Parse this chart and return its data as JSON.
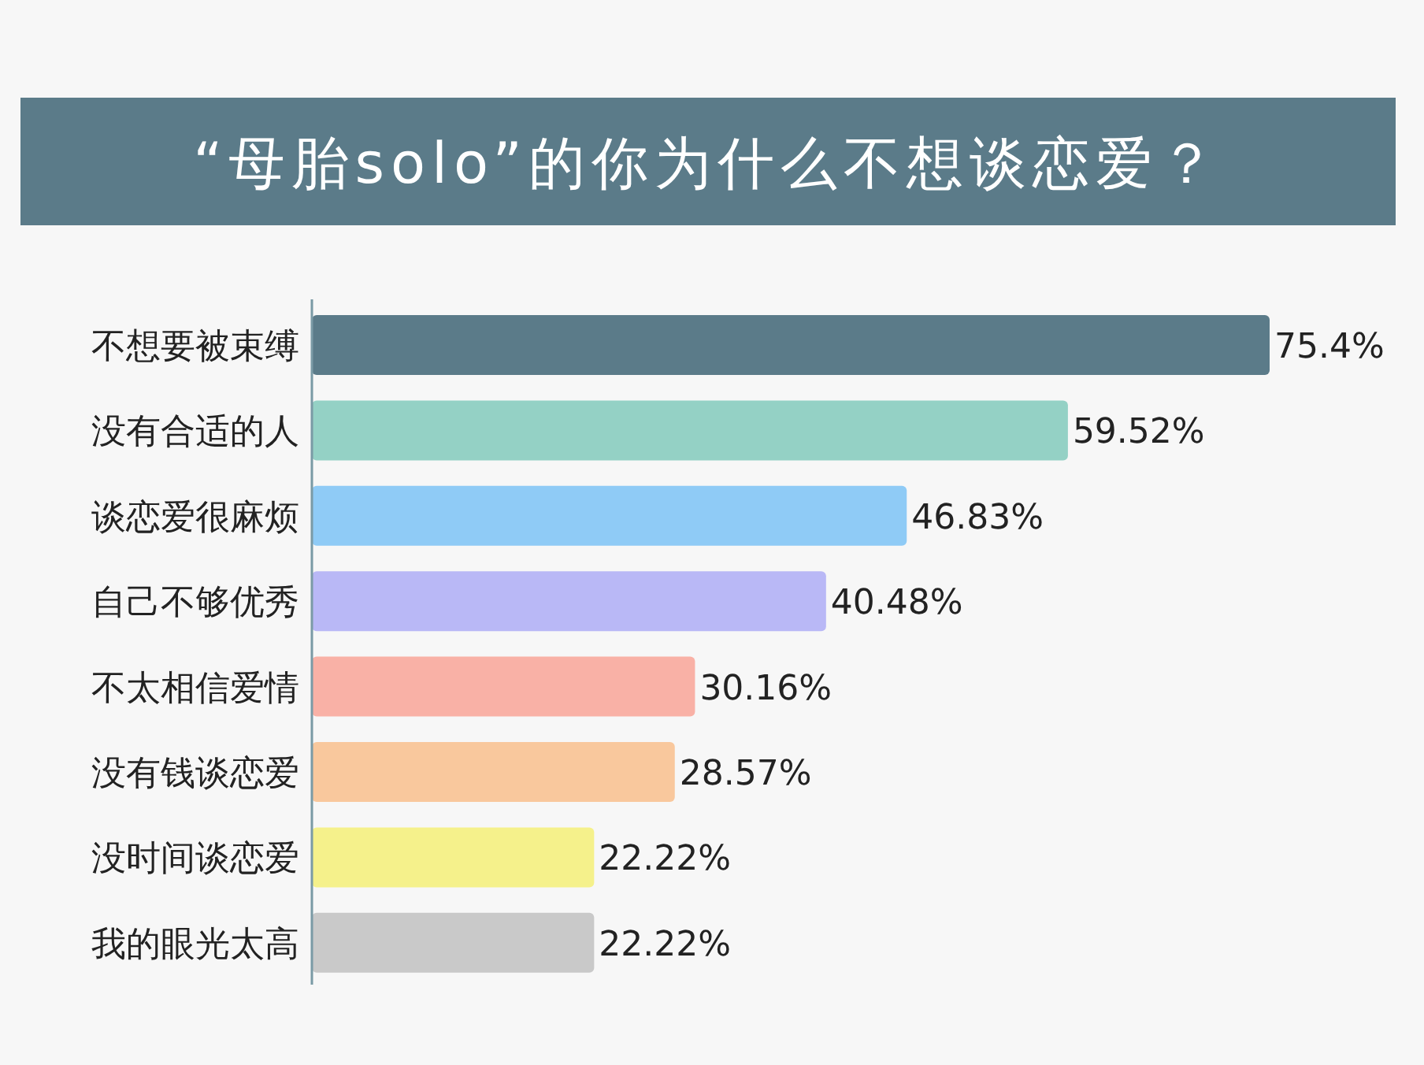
{
  "chart_data": {
    "type": "bar",
    "orientation": "horizontal",
    "title": "“母胎solo”的你为什么不想谈恋爱？",
    "categories": [
      "不想要被束缚",
      "没有合适的人",
      "谈恋爱很麻烦",
      "自己不够优秀",
      "不太相信爱情",
      "没有钱谈恋爱",
      "没时间谈恋爱",
      "我的眼光太高"
    ],
    "values": [
      75.4,
      59.52,
      46.83,
      40.48,
      30.16,
      28.57,
      22.22,
      22.22
    ],
    "value_labels": [
      "75.4%",
      "59.52%",
      "46.83%",
      "40.48%",
      "30.16%",
      "28.57%",
      "22.22%",
      "22.22%"
    ],
    "colors": [
      "#5b7b89",
      "#94d1c5",
      "#8fcbf6",
      "#b9b8f6",
      "#f9b1a6",
      "#f9c89d",
      "#f5f18b",
      "#c9c9c9"
    ]
  }
}
